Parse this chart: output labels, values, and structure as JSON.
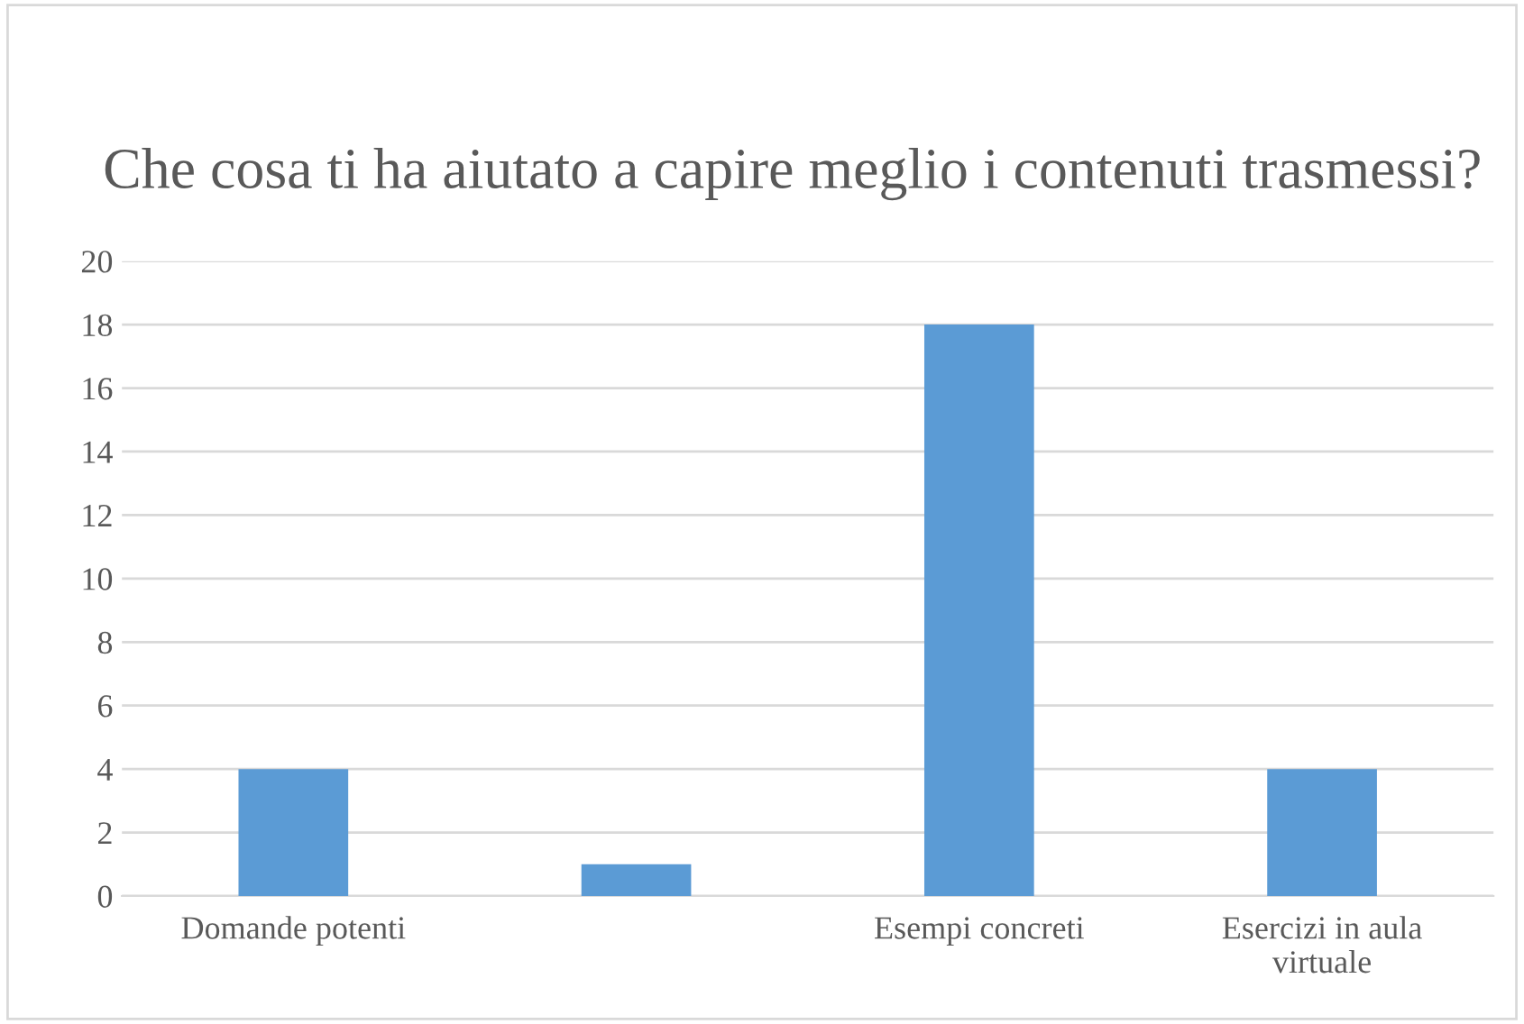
{
  "chart_data": {
    "type": "bar",
    "title": "Che cosa ti ha aiutato a capire meglio i contenuti trasmessi?",
    "categories": [
      "Domande potenti",
      null,
      "Esempi concreti",
      "Esercizi in aula virtuale"
    ],
    "values": [
      4,
      1,
      18,
      4
    ],
    "color": "#5b9bd5",
    "ylim": [
      0,
      20
    ],
    "yticks": [
      0,
      2,
      4,
      6,
      8,
      10,
      12,
      14,
      16,
      18,
      20
    ],
    "grid": "y",
    "legend": false
  }
}
